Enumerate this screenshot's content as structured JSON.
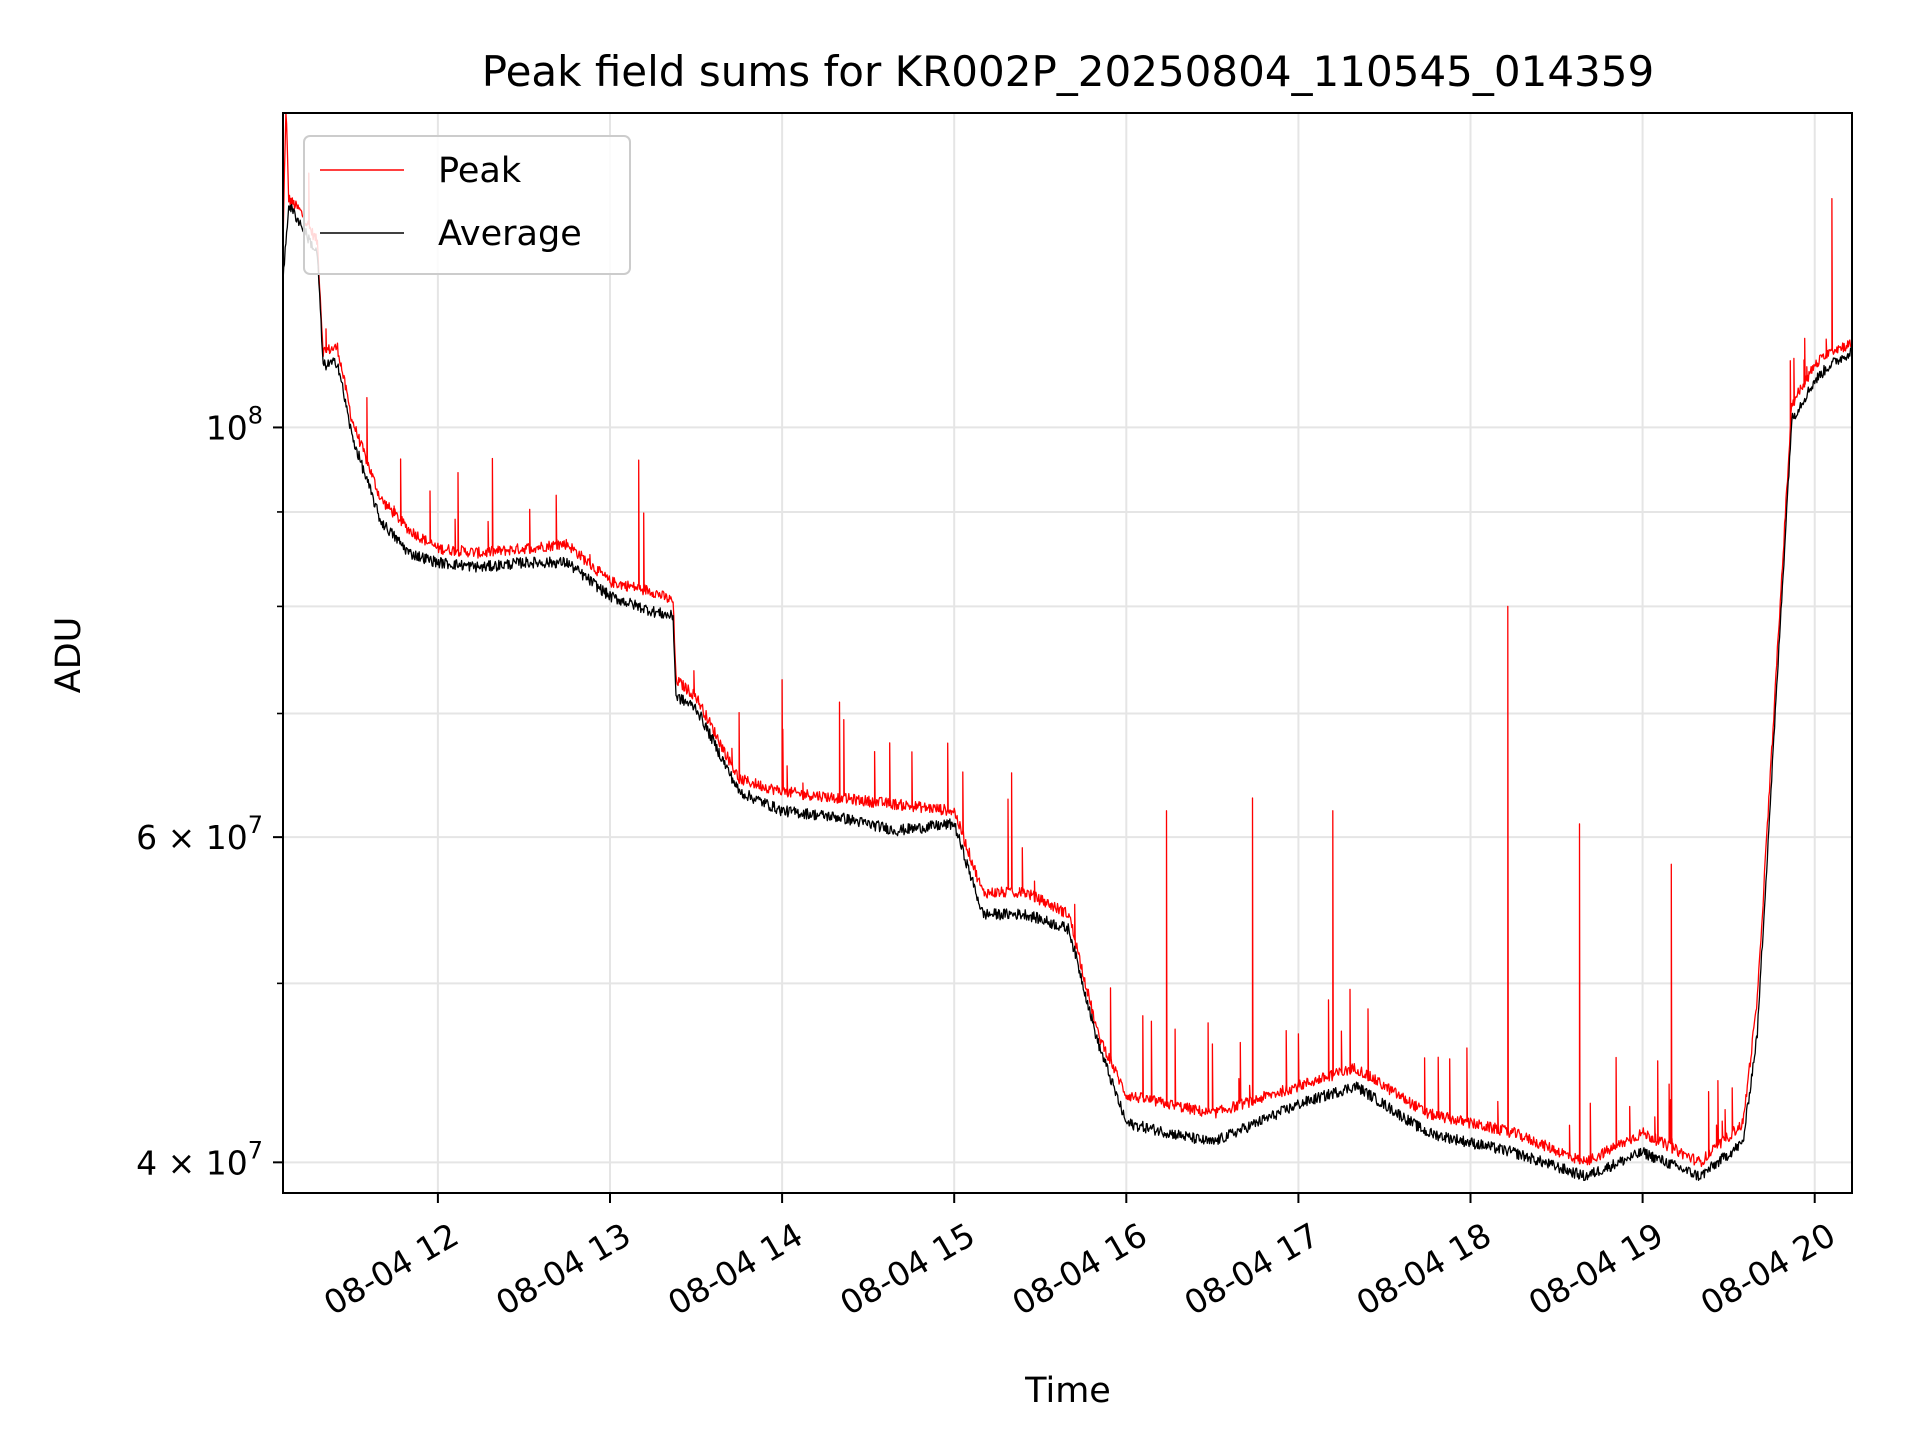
{
  "chart_data": {
    "type": "line",
    "title": "Peak field sums for KR002P_20250804_110545_014359",
    "xlabel": "Time",
    "ylabel": "ADU",
    "y_scale": "log",
    "xlim": [
      "08-04 11:06",
      "08-04 20:13"
    ],
    "ylim": [
      38500000,
      148000000
    ],
    "grid": true,
    "legend_position": "upper left",
    "x_ticks": [
      "08-04 12",
      "08-04 13",
      "08-04 14",
      "08-04 15",
      "08-04 16",
      "08-04 17",
      "08-04 18",
      "08-04 19",
      "08-04 20"
    ],
    "y_ticks": [
      {
        "value": 100000000,
        "base": "10",
        "exp": "8",
        "mant": ""
      },
      {
        "value": 60000000,
        "base": "10",
        "exp": "7",
        "mant": "6"
      },
      {
        "value": 40000000,
        "base": "10",
        "exp": "7",
        "mant": "4"
      }
    ],
    "y_minor_ticks": [
      50000000,
      70000000,
      80000000,
      90000000
    ],
    "series": [
      {
        "name": "Peak",
        "color": "#ff0000",
        "points": [
          [
            "08-04 11:06",
            125000000
          ],
          [
            "08-04 11:07",
            150000000
          ],
          [
            "08-04 11:08",
            133000000
          ],
          [
            "08-04 11:12",
            131000000
          ],
          [
            "08-04 11:18",
            126000000
          ],
          [
            "08-04 11:20",
            110000000
          ],
          [
            "08-04 11:25",
            110500000
          ],
          [
            "08-04 11:30",
            101000000
          ],
          [
            "08-04 11:40",
            91500000
          ],
          [
            "08-04 11:50",
            88000000
          ],
          [
            "08-04 12:00",
            86000000
          ],
          [
            "08-04 12:15",
            85500000
          ],
          [
            "08-04 12:30",
            86000000
          ],
          [
            "08-04 12:45",
            86500000
          ],
          [
            "08-04 13:00",
            82500000
          ],
          [
            "08-04 13:15",
            81500000
          ],
          [
            "08-04 13:22",
            80500000
          ],
          [
            "08-04 13:23",
            73000000
          ],
          [
            "08-04 13:30",
            71500000
          ],
          [
            "08-04 13:45",
            64500000
          ],
          [
            "08-04 14:00",
            63500000
          ],
          [
            "08-04 14:20",
            63000000
          ],
          [
            "08-04 14:40",
            62500000
          ],
          [
            "08-04 15:00",
            62000000
          ],
          [
            "08-04 15:10",
            56000000
          ],
          [
            "08-04 15:25",
            56000000
          ],
          [
            "08-04 15:40",
            54500000
          ],
          [
            "08-04 15:50",
            47000000
          ],
          [
            "08-04 16:00",
            43500000
          ],
          [
            "08-04 16:30",
            42500000
          ],
          [
            "08-04 17:00",
            44000000
          ],
          [
            "08-04 17:20",
            45000000
          ],
          [
            "08-04 17:45",
            42500000
          ],
          [
            "08-04 18:15",
            41500000
          ],
          [
            "08-04 18:40",
            40000000
          ],
          [
            "08-04 19:00",
            41500000
          ],
          [
            "08-04 19:20",
            40000000
          ],
          [
            "08-04 19:35",
            42000000
          ],
          [
            "08-04 19:40",
            49000000
          ],
          [
            "08-04 19:52",
            103000000
          ],
          [
            "08-04 20:00",
            108000000
          ],
          [
            "08-04 20:05",
            110000000
          ],
          [
            "08-04 20:13",
            111000000
          ]
        ],
        "spikes": [
          [
            "08-04 13:10",
            96000000
          ],
          [
            "08-04 14:00",
            73000000
          ],
          [
            "08-04 14:20",
            71000000
          ],
          [
            "08-04 15:20",
            65000000
          ],
          [
            "08-04 16:14",
            62000000
          ],
          [
            "08-04 16:44",
            63000000
          ],
          [
            "08-04 17:12",
            62000000
          ],
          [
            "08-04 18:13",
            80000000
          ],
          [
            "08-04 18:38",
            61000000
          ],
          [
            "08-04 19:10",
            58000000
          ],
          [
            "08-04 20:06",
            133000000
          ]
        ]
      },
      {
        "name": "Average",
        "color": "#000000",
        "points": [
          [
            "08-04 11:06",
            120000000
          ],
          [
            "08-04 11:08",
            132000000
          ],
          [
            "08-04 11:12",
            129000000
          ],
          [
            "08-04 11:18",
            124000000
          ],
          [
            "08-04 11:20",
            108000000
          ],
          [
            "08-04 11:25",
            108500000
          ],
          [
            "08-04 11:30",
            99000000
          ],
          [
            "08-04 11:40",
            89000000
          ],
          [
            "08-04 11:50",
            85500000
          ],
          [
            "08-04 12:00",
            84500000
          ],
          [
            "08-04 12:15",
            84000000
          ],
          [
            "08-04 12:30",
            84500000
          ],
          [
            "08-04 12:45",
            84500000
          ],
          [
            "08-04 13:00",
            81000000
          ],
          [
            "08-04 13:15",
            79500000
          ],
          [
            "08-04 13:22",
            79000000
          ],
          [
            "08-04 13:23",
            71500000
          ],
          [
            "08-04 13:30",
            70500000
          ],
          [
            "08-04 13:45",
            63500000
          ],
          [
            "08-04 14:00",
            62000000
          ],
          [
            "08-04 14:20",
            61500000
          ],
          [
            "08-04 14:40",
            60500000
          ],
          [
            "08-04 15:00",
            61000000
          ],
          [
            "08-04 15:10",
            54500000
          ],
          [
            "08-04 15:25",
            54500000
          ],
          [
            "08-04 15:40",
            53500000
          ],
          [
            "08-04 15:50",
            46500000
          ],
          [
            "08-04 16:00",
            42000000
          ],
          [
            "08-04 16:30",
            41000000
          ],
          [
            "08-04 17:00",
            43000000
          ],
          [
            "08-04 17:20",
            44000000
          ],
          [
            "08-04 17:45",
            41500000
          ],
          [
            "08-04 18:15",
            40500000
          ],
          [
            "08-04 18:40",
            39300000
          ],
          [
            "08-04 19:00",
            40500000
          ],
          [
            "08-04 19:20",
            39300000
          ],
          [
            "08-04 19:35",
            41000000
          ],
          [
            "08-04 19:40",
            47000000
          ],
          [
            "08-04 19:52",
            101000000
          ],
          [
            "08-04 20:00",
            106000000
          ],
          [
            "08-04 20:05",
            108000000
          ],
          [
            "08-04 20:13",
            110000000
          ]
        ]
      }
    ]
  }
}
